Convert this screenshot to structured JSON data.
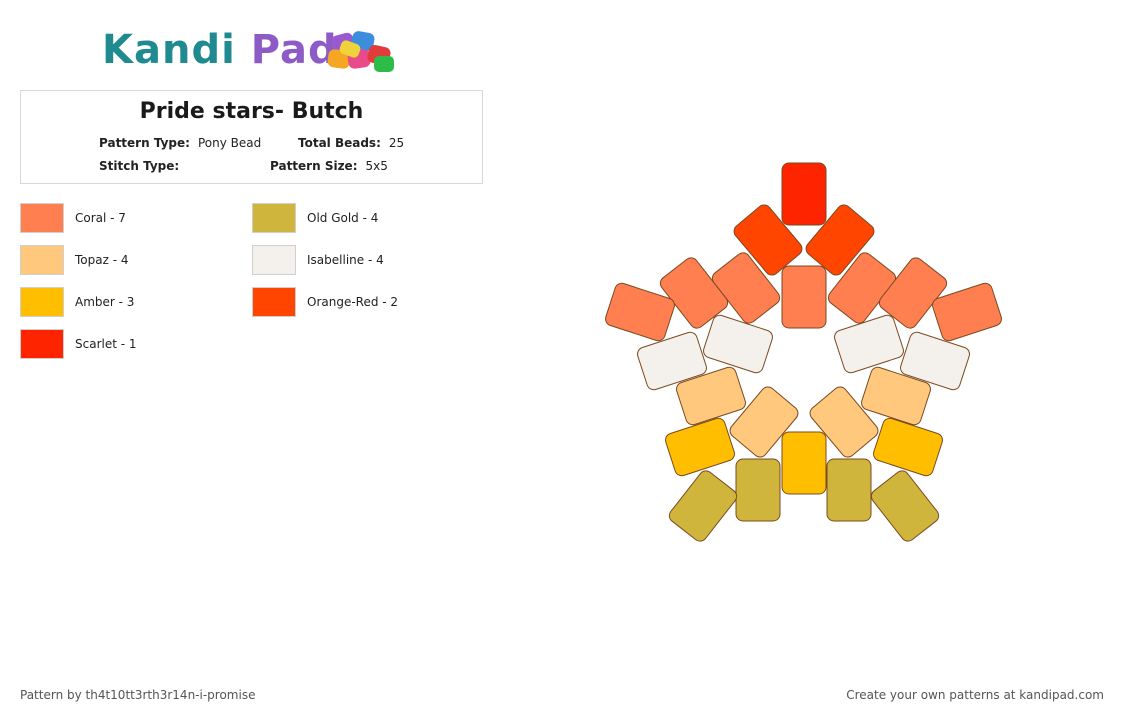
{
  "brand": {
    "logo_part1": "Kandi",
    "logo_part2": "Pad"
  },
  "pattern": {
    "title": "Pride stars- Butch",
    "pattern_type_label": "Pattern Type:",
    "pattern_type": "Pony Bead",
    "total_beads_label": "Total Beads:",
    "total_beads": "25",
    "stitch_type_label": "Stitch Type:",
    "stitch_type": "",
    "pattern_size_label": "Pattern Size:",
    "pattern_size": "5x5"
  },
  "legend": [
    {
      "label": "Coral - 7",
      "color": "#ff7f50"
    },
    {
      "label": "Topaz - 4",
      "color": "#ffc87c"
    },
    {
      "label": "Amber - 3",
      "color": "#ffbf00"
    },
    {
      "label": "Scarlet - 1",
      "color": "#ff2400"
    },
    {
      "label": "Old Gold - 4",
      "color": "#cfb53b"
    },
    {
      "label": "Isabelline - 4",
      "color": "#f4f0ec"
    },
    {
      "label": "Orange-Red - 2",
      "color": "#ff4500"
    }
  ],
  "footer": {
    "author": "Pattern by th4t10tt3rth3r14n-i-promise",
    "cta": "Create your own patterns at kandipad.com"
  }
}
